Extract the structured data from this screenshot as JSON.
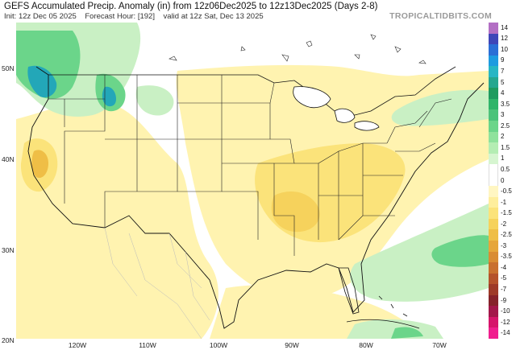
{
  "header": {
    "title": "GEFS Accumulated Precip. Anomaly (in) from 12z06Dec2025 to 12z13Dec2025 (Days 2-8)",
    "init": "Init: 12z Dec 05 2025",
    "forecast_hour": "Forecast Hour: [192]",
    "valid": "valid at 12z Sat, Dec 13 2025",
    "brand": "TROPICALTIDBITS.COM"
  },
  "map": {
    "lat_labels": [
      "50N",
      "40N",
      "30N",
      "20N"
    ],
    "lon_labels": [
      "120W",
      "110W",
      "100W",
      "90W",
      "80W",
      "70W"
    ],
    "colors": {
      "dry_light": "#fff3b0",
      "dry_mid": "#fbe37a",
      "dry_deep": "#f2c24a",
      "wet_light": "#c9f0c4",
      "wet_mid": "#6bd58a",
      "wet_deep": "#1ea860",
      "wet_teal": "#23a7b8",
      "border": "#111111"
    }
  },
  "colorbar": {
    "labels": [
      "14",
      "12",
      "10",
      "9",
      "7",
      "5",
      "4",
      "3.5",
      "3",
      "2.5",
      "2",
      "1.5",
      "1",
      "0.5",
      "0",
      "-0.5",
      "-1",
      "-1.5",
      "-2",
      "-2.5",
      "-3",
      "-3.5",
      "-4",
      "-5",
      "-7",
      "-9",
      "-10",
      "-12",
      "-14"
    ],
    "colors": [
      "#b36fc4",
      "#3f46b8",
      "#2b6fd6",
      "#1e9be0",
      "#27b6c4",
      "#25a78f",
      "#1f9b5f",
      "#2fb56a",
      "#4cc37a",
      "#6bd58a",
      "#8fe29c",
      "#b4edb3",
      "#d6f5d0",
      "#ffffff",
      "#ffffff",
      "#fff6c2",
      "#feee9c",
      "#fbe37a",
      "#f6d25c",
      "#efbe46",
      "#e6a63a",
      "#d98c33",
      "#c9702f",
      "#b5522b",
      "#9e3a28",
      "#86222a",
      "#a3174a",
      "#d6156b",
      "#f01e8e"
    ]
  }
}
